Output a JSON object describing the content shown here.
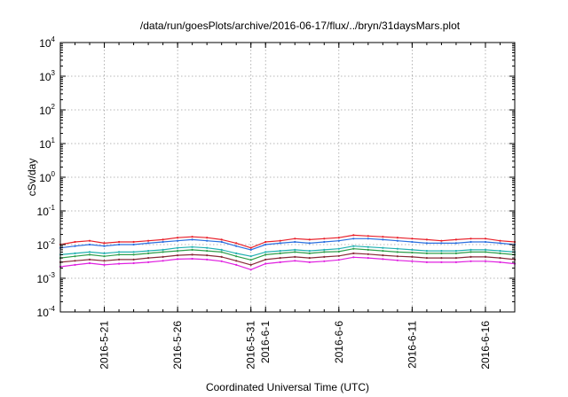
{
  "chart_data": {
    "type": "line",
    "title": "/data/run/goesPlots/archive/2016-06-17/flux/../bryn/31daysMars.plot",
    "xlabel": "Coordinated Universal Time (UTC)",
    "ylabel": "cSv/day",
    "yscale": "log",
    "ylim": [
      0.0001,
      10000
    ],
    "xlim": [
      "2016-05-18",
      "2016-06-18"
    ],
    "grid": true,
    "y_ticks": [
      {
        "base": "10",
        "exp": "-4",
        "value": 0.0001
      },
      {
        "base": "10",
        "exp": "-3",
        "value": 0.001
      },
      {
        "base": "10",
        "exp": "-2",
        "value": 0.01
      },
      {
        "base": "10",
        "exp": "-1",
        "value": 0.1
      },
      {
        "base": "10",
        "exp": "0",
        "value": 1
      },
      {
        "base": "10",
        "exp": "1",
        "value": 10
      },
      {
        "base": "10",
        "exp": "2",
        "value": 100
      },
      {
        "base": "10",
        "exp": "3",
        "value": 1000
      },
      {
        "base": "10",
        "exp": "4",
        "value": 10000
      }
    ],
    "x_ticks": [
      {
        "date": "2016-05-21",
        "label": "2016-5-21"
      },
      {
        "date": "2016-05-26",
        "label": "2016-5-26"
      },
      {
        "date": "2016-05-31",
        "label": "2016-5-31"
      },
      {
        "date": "2016-06-01",
        "label": "2016-6-1"
      },
      {
        "date": "2016-06-06",
        "label": "2016-6-6"
      },
      {
        "date": "2016-06-11",
        "label": "2016-6-11"
      },
      {
        "date": "2016-06-16",
        "label": "2016-6-16"
      }
    ],
    "x": [
      "2016-05-18",
      "2016-05-19",
      "2016-05-20",
      "2016-05-21",
      "2016-05-22",
      "2016-05-23",
      "2016-05-24",
      "2016-05-25",
      "2016-05-26",
      "2016-05-27",
      "2016-05-28",
      "2016-05-29",
      "2016-05-30",
      "2016-05-31",
      "2016-06-01",
      "2016-06-02",
      "2016-06-03",
      "2016-06-04",
      "2016-06-05",
      "2016-06-06",
      "2016-06-07",
      "2016-06-08",
      "2016-06-09",
      "2016-06-10",
      "2016-06-11",
      "2016-06-12",
      "2016-06-13",
      "2016-06-14",
      "2016-06-15",
      "2016-06-16",
      "2016-06-17",
      "2016-06-18"
    ],
    "series": [
      {
        "color": "#e8202a",
        "values": [
          0.01,
          0.012,
          0.013,
          0.011,
          0.012,
          0.012,
          0.013,
          0.014,
          0.016,
          0.017,
          0.016,
          0.014,
          0.011,
          0.008,
          0.012,
          0.013,
          0.015,
          0.014,
          0.015,
          0.016,
          0.019,
          0.018,
          0.017,
          0.016,
          0.015,
          0.014,
          0.013,
          0.014,
          0.015,
          0.015,
          0.013,
          0.012
        ]
      },
      {
        "color": "#2a6fe0",
        "values": [
          0.008,
          0.009,
          0.01,
          0.009,
          0.01,
          0.01,
          0.011,
          0.012,
          0.013,
          0.014,
          0.013,
          0.012,
          0.009,
          0.007,
          0.01,
          0.011,
          0.012,
          0.011,
          0.012,
          0.013,
          0.015,
          0.015,
          0.014,
          0.013,
          0.012,
          0.011,
          0.011,
          0.011,
          0.012,
          0.012,
          0.011,
          0.01
        ]
      },
      {
        "color": "#20b0b0",
        "values": [
          0.005,
          0.0055,
          0.006,
          0.0055,
          0.006,
          0.006,
          0.0065,
          0.007,
          0.008,
          0.0085,
          0.008,
          0.007,
          0.0055,
          0.0045,
          0.006,
          0.0065,
          0.007,
          0.0065,
          0.007,
          0.0075,
          0.009,
          0.0085,
          0.008,
          0.0075,
          0.007,
          0.0065,
          0.0065,
          0.0065,
          0.007,
          0.007,
          0.0065,
          0.006
        ]
      },
      {
        "color": "#2e9e4a",
        "values": [
          0.004,
          0.0045,
          0.005,
          0.0045,
          0.005,
          0.005,
          0.0055,
          0.006,
          0.0065,
          0.007,
          0.0065,
          0.006,
          0.0045,
          0.0035,
          0.005,
          0.0055,
          0.006,
          0.0055,
          0.006,
          0.0062,
          0.0075,
          0.007,
          0.0065,
          0.006,
          0.0058,
          0.0055,
          0.0055,
          0.0055,
          0.006,
          0.006,
          0.0055,
          0.005
        ]
      },
      {
        "color": "#8a2a3a",
        "values": [
          0.003,
          0.0033,
          0.0036,
          0.0033,
          0.0036,
          0.0036,
          0.004,
          0.0043,
          0.0048,
          0.005,
          0.0048,
          0.0043,
          0.0033,
          0.0025,
          0.0036,
          0.004,
          0.0043,
          0.004,
          0.0043,
          0.0046,
          0.0055,
          0.0052,
          0.0048,
          0.0045,
          0.0043,
          0.004,
          0.004,
          0.004,
          0.0043,
          0.0043,
          0.004,
          0.0036
        ]
      },
      {
        "color": "#e020e0",
        "values": [
          0.0022,
          0.0025,
          0.0028,
          0.0025,
          0.0027,
          0.0028,
          0.003,
          0.0033,
          0.0037,
          0.0038,
          0.0036,
          0.0032,
          0.0025,
          0.0018,
          0.0027,
          0.003,
          0.0033,
          0.003,
          0.0032,
          0.0035,
          0.0042,
          0.004,
          0.0037,
          0.0034,
          0.0032,
          0.003,
          0.003,
          0.003,
          0.0032,
          0.0032,
          0.003,
          0.0027
        ]
      }
    ]
  }
}
